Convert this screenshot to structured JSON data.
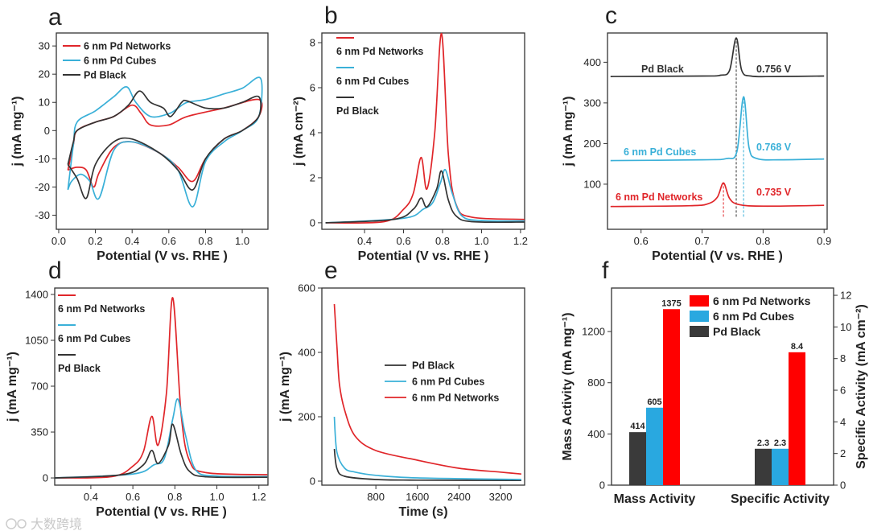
{
  "watermark": "大数跨境",
  "colors": {
    "networks": "#e0262a",
    "cubes": "#3ab0d8",
    "black": "#333333",
    "bar_networks": "#ff0000",
    "bar_cubes": "#29a8e0",
    "bar_black": "#3a3a3a"
  },
  "chart_data": [
    {
      "panel": "a",
      "type": "line",
      "title": "a",
      "xlabel": "Potential (V vs. RHE )",
      "ylabel": "j (mA mg⁻¹)",
      "xlim": [
        -0.013,
        1.14
      ],
      "ylim": [
        -35,
        34.6
      ],
      "xticks": [
        0,
        0.2,
        0.4,
        0.6,
        0.8,
        1.0
      ],
      "xtick_labels": [
        "0.0",
        "0.2",
        "0.4",
        "0.6",
        "0.8",
        "1.0"
      ],
      "yticks": [
        -30,
        -20,
        -10,
        0,
        10,
        20,
        30
      ],
      "ytick_labels": [
        "-30",
        "-20",
        "-10",
        "0",
        "10",
        "20",
        "30"
      ],
      "legend": "top-left",
      "series": [
        {
          "name": "6 nm Pd Networks",
          "color": "#e0262a",
          "x": [
            0.05,
            0.08,
            0.1,
            0.2,
            0.3,
            0.4,
            0.45,
            0.5,
            0.6,
            0.7,
            0.9,
            1.09,
            1.09,
            1.0,
            0.9,
            0.8,
            0.73,
            0.65,
            0.55,
            0.4,
            0.3,
            0.22,
            0.19,
            0.15,
            0.1,
            0.05
          ],
          "y": [
            -14,
            -5,
            0,
            3,
            5,
            9,
            6,
            2,
            2,
            5,
            8,
            11,
            5,
            0,
            -3,
            -10,
            -18,
            -13,
            -8,
            -4,
            -6,
            -15,
            -20,
            -14,
            -13,
            -14
          ]
        },
        {
          "name": "6 nm Pd Cubes",
          "color": "#3ab0d8",
          "x": [
            0.05,
            0.08,
            0.1,
            0.2,
            0.3,
            0.37,
            0.42,
            0.5,
            0.6,
            0.65,
            0.7,
            0.8,
            0.9,
            1.0,
            1.1,
            1.09,
            1.0,
            0.9,
            0.8,
            0.73,
            0.65,
            0.55,
            0.4,
            0.3,
            0.22,
            0.17,
            0.12,
            0.07,
            0.05
          ],
          "y": [
            -21,
            -5,
            3,
            7,
            12,
            15.5,
            10,
            5,
            6,
            8,
            10,
            11,
            13,
            15,
            18.5,
            5,
            0,
            -4,
            -11,
            -27,
            -14,
            -8,
            -4,
            -7,
            -24,
            -18,
            -15.5,
            -18,
            -21
          ]
        },
        {
          "name": "Pd Black",
          "color": "#333333",
          "x": [
            0.05,
            0.08,
            0.1,
            0.2,
            0.3,
            0.38,
            0.44,
            0.5,
            0.57,
            0.61,
            0.67,
            0.7,
            0.8,
            0.9,
            1.0,
            1.09,
            1.09,
            1.0,
            0.9,
            0.8,
            0.73,
            0.65,
            0.55,
            0.4,
            0.3,
            0.2,
            0.15,
            0.1,
            0.05
          ],
          "y": [
            -12,
            -4,
            0,
            3,
            5,
            9,
            14,
            10,
            8,
            5,
            10,
            10.5,
            8,
            8,
            10,
            12,
            5,
            0,
            -3,
            -10,
            -21,
            -14,
            -8,
            -3,
            -4,
            -12,
            -24,
            -17,
            -12
          ]
        }
      ]
    },
    {
      "panel": "b",
      "type": "line",
      "title": "b",
      "xlabel": "Potential (V vs. RHE )",
      "ylabel": "j (mA cm⁻²)",
      "xlim": [
        0.181,
        1.221
      ],
      "ylim": [
        -0.29,
        8.43
      ],
      "xticks": [
        0.4,
        0.6,
        0.8,
        1.0,
        1.2
      ],
      "xtick_labels": [
        "0.4",
        "0.6",
        "0.8",
        "1.0",
        "1.2"
      ],
      "yticks": [
        0,
        2,
        4,
        6,
        8
      ],
      "ytick_labels": [
        "0",
        "2",
        "4",
        "6",
        "8"
      ],
      "legend": "top-left",
      "series": [
        {
          "name": "6 nm Pd Networks",
          "color": "#e0262a",
          "x": [
            0.2,
            0.5,
            0.6,
            0.65,
            0.69,
            0.72,
            0.76,
            0.795,
            0.83,
            0.87,
            0.95,
            1.22
          ],
          "y": [
            0,
            0.05,
            0.6,
            1.3,
            2.9,
            1.5,
            4,
            8.4,
            3,
            0.8,
            0.25,
            0.15
          ]
        },
        {
          "name": "6 nm Pd Cubes",
          "color": "#3ab0d8",
          "x": [
            0.2,
            0.6,
            0.7,
            0.75,
            0.79,
            0.815,
            0.85,
            0.9,
            1.0,
            1.22
          ],
          "y": [
            0,
            0.2,
            0.6,
            0.9,
            1.8,
            2.35,
            1.3,
            0.3,
            0.1,
            0.08
          ]
        },
        {
          "name": "Pd Black",
          "color": "#333333",
          "x": [
            0.2,
            0.55,
            0.65,
            0.69,
            0.72,
            0.77,
            0.795,
            0.83,
            0.87,
            0.95,
            1.22
          ],
          "y": [
            0,
            0.15,
            0.6,
            1.1,
            0.7,
            1.5,
            2.3,
            1.0,
            0.3,
            0.05,
            0.03
          ]
        }
      ]
    },
    {
      "panel": "c",
      "type": "line",
      "title": "c",
      "xlabel": "Potential (V vs. RHE )",
      "ylabel": "j (mA mg⁻¹)",
      "xlim": [
        0.545,
        0.905
      ],
      "ylim": [
        -11,
        472
      ],
      "xticks": [
        0.6,
        0.7,
        0.8,
        0.9
      ],
      "xtick_labels": [
        "0.6",
        "0.7",
        "0.8",
        "0.9"
      ],
      "yticks": [
        100,
        200,
        300,
        400
      ],
      "ytick_labels": [
        "100",
        "200",
        "300",
        "400"
      ],
      "series": [
        {
          "name": "Pd Black",
          "color": "#333333",
          "label": "Pd Black",
          "peak_label": "0.756 V",
          "x": [
            0.55,
            0.7,
            0.73,
            0.745,
            0.756,
            0.765,
            0.78,
            0.82,
            0.9
          ],
          "y": [
            365,
            366,
            368,
            380,
            460,
            380,
            366,
            365,
            366
          ]
        },
        {
          "name": "6 nm Pd Cubes",
          "color": "#3ab0d8",
          "label": "6 nm Pd Cubes",
          "peak_label": "0.768 V",
          "x": [
            0.55,
            0.7,
            0.74,
            0.757,
            0.768,
            0.777,
            0.79,
            0.83,
            0.9
          ],
          "y": [
            158,
            160,
            163,
            180,
            315,
            190,
            163,
            160,
            162
          ]
        },
        {
          "name": "6 nm Pd Networks",
          "color": "#e0262a",
          "label": "6 nm Pd Networks",
          "peak_label": "0.735 V",
          "x": [
            0.55,
            0.68,
            0.71,
            0.725,
            0.735,
            0.745,
            0.76,
            0.8,
            0.9
          ],
          "y": [
            45,
            47,
            52,
            68,
            103,
            65,
            50,
            46,
            48
          ]
        }
      ],
      "vlines": [
        {
          "x": 0.756,
          "y": [
            20,
            460
          ],
          "color": "#333333"
        },
        {
          "x": 0.768,
          "y": [
            20,
            315
          ],
          "color": "#3ab0d8"
        },
        {
          "x": 0.735,
          "y": [
            20,
            103
          ],
          "color": "#e0262a"
        }
      ]
    },
    {
      "panel": "d",
      "type": "line",
      "title": "d",
      "xlabel": "Potential (V vs. RHE )",
      "ylabel": "j (mA mg⁻¹)",
      "xlim": [
        0.228,
        1.243
      ],
      "ylim": [
        -55,
        1449
      ],
      "xticks": [
        0.4,
        0.6,
        0.8,
        1.0,
        1.2
      ],
      "xtick_labels": [
        "0.4",
        "0.6",
        "0.8",
        "1.0",
        "1.2"
      ],
      "yticks": [
        0,
        350,
        700,
        1050,
        1400
      ],
      "ytick_labels": [
        "0",
        "350",
        "700",
        "1050",
        "1400"
      ],
      "legend": "top-left",
      "series": [
        {
          "name": "6 nm Pd Networks",
          "color": "#e0262a",
          "x": [
            0.23,
            0.5,
            0.6,
            0.65,
            0.69,
            0.72,
            0.76,
            0.79,
            0.83,
            0.87,
            0.95,
            1.24
          ],
          "y": [
            0,
            10,
            90,
            200,
            470,
            250,
            650,
            1375,
            480,
            130,
            40,
            25
          ]
        },
        {
          "name": "6 nm Pd Cubes",
          "color": "#3ab0d8",
          "x": [
            0.23,
            0.6,
            0.7,
            0.75,
            0.79,
            0.815,
            0.85,
            0.9,
            1.0,
            1.24
          ],
          "y": [
            0,
            30,
            100,
            150,
            450,
            600,
            330,
            60,
            15,
            10
          ]
        },
        {
          "name": "Pd Black",
          "color": "#333333",
          "x": [
            0.23,
            0.55,
            0.65,
            0.69,
            0.72,
            0.77,
            0.79,
            0.83,
            0.87,
            0.95,
            1.24
          ],
          "y": [
            0,
            25,
            100,
            210,
            110,
            250,
            410,
            180,
            50,
            8,
            5
          ]
        }
      ]
    },
    {
      "panel": "e",
      "type": "line",
      "title": "e",
      "xlabel": "Time (s)",
      "ylabel": "j (mA mg⁻¹)",
      "xlim": [
        -240,
        3664
      ],
      "ylim": [
        -12.5,
        600
      ],
      "xticks": [
        800,
        1600,
        2400,
        3200
      ],
      "xtick_labels": [
        "800",
        "1600",
        "2400",
        "3200"
      ],
      "yticks": [
        0,
        200,
        400,
        600
      ],
      "ytick_labels": [
        "0",
        "200",
        "400",
        "600"
      ],
      "legend": "center",
      "series": [
        {
          "name": "Pd Black",
          "color": "#333333",
          "x": [
            0,
            50,
            200,
            800,
            1600,
            3600
          ],
          "y": [
            100,
            40,
            15,
            5,
            3,
            2
          ]
        },
        {
          "name": "6 nm Pd Cubes",
          "color": "#3ab0d8",
          "x": [
            0,
            50,
            200,
            400,
            800,
            1600,
            3600
          ],
          "y": [
            200,
            90,
            40,
            28,
            18,
            10,
            5
          ]
        },
        {
          "name": "6 nm Pd Networks",
          "color": "#e0262a",
          "x": [
            0,
            50,
            100,
            200,
            400,
            800,
            1600,
            2400,
            3200,
            3600
          ],
          "y": [
            550,
            420,
            300,
            220,
            140,
            95,
            65,
            40,
            28,
            22
          ]
        }
      ]
    },
    {
      "panel": "f",
      "type": "bar",
      "title": "f",
      "categories": [
        "Mass Activity",
        "Specific Activity"
      ],
      "ylabel": "Mass Activity (mA mg⁻¹)",
      "ylabel_right": "Specific Activity (mA cm⁻²)",
      "ylim": [
        0,
        1540
      ],
      "ylim_right": [
        0,
        12.46
      ],
      "yticks": [
        0,
        400,
        800,
        1200
      ],
      "ytick_labels": [
        "0",
        "400",
        "800",
        "1200"
      ],
      "yticks_right": [
        0,
        2,
        4,
        6,
        8,
        10,
        12
      ],
      "ytick_labels_right": [
        "0",
        "2",
        "4",
        "6",
        "8",
        "10",
        "12"
      ],
      "legend": "top-right",
      "series": [
        {
          "name": "Pd Black",
          "color": "#3a3a3a",
          "values": [
            414,
            2.3
          ],
          "labels": [
            "414",
            "2.3"
          ]
        },
        {
          "name": "6 nm Pd Cubes",
          "color": "#29a8e0",
          "values": [
            605,
            2.3
          ],
          "labels": [
            "605",
            "2.3"
          ]
        },
        {
          "name": "6 nm Pd Networks",
          "color": "#ff0000",
          "values": [
            1375,
            8.4
          ],
          "labels": [
            "1375",
            "8.4"
          ]
        }
      ],
      "legend_order": [
        2,
        1,
        0
      ]
    }
  ]
}
